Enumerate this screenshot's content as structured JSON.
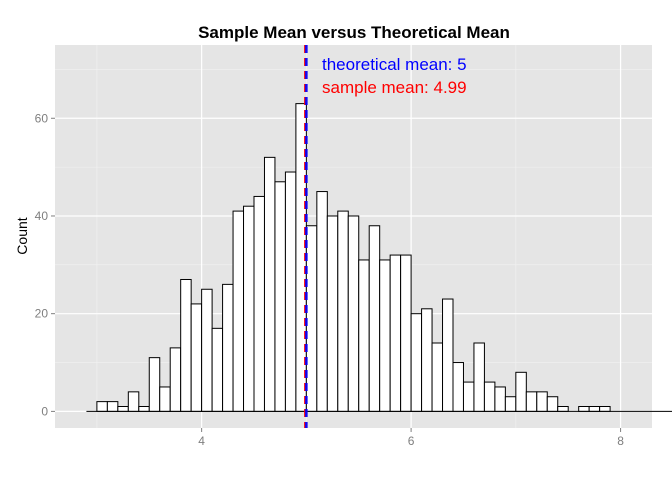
{
  "chart_data": {
    "type": "bar",
    "title": "Sample Mean versus Theoretical Mean",
    "xlabel": "",
    "ylabel": "Count",
    "xlim": [
      2.6,
      8.3
    ],
    "ylim": [
      -3.4,
      75
    ],
    "x_ticks": [
      4,
      6,
      8
    ],
    "y_ticks": [
      0,
      20,
      40,
      60
    ],
    "bin_width": 0.1,
    "bins_start": 2.9,
    "values": [
      0,
      2,
      2,
      1,
      4,
      1,
      11,
      5,
      13,
      27,
      22,
      25,
      17,
      26,
      41,
      42,
      44,
      52,
      47,
      49,
      63,
      38,
      45,
      40,
      41,
      40,
      31,
      38,
      31,
      32,
      32,
      20,
      21,
      14,
      23,
      10,
      6,
      14,
      6,
      5,
      3,
      8,
      4,
      4,
      3,
      1,
      0,
      1,
      1,
      1,
      0,
      0,
      0,
      0,
      0,
      0,
      0,
      1,
      0
    ],
    "reference_lines": [
      {
        "name": "theoretical mean",
        "x": 5,
        "color": "#0000ff",
        "style": "dashed"
      },
      {
        "name": "sample mean",
        "x": 4.99,
        "color": "#ff0000",
        "style": "dashed"
      }
    ],
    "annotations": [
      {
        "text": "theoretical mean: 5",
        "color": "#0000ff"
      },
      {
        "text": "sample mean: 4.99",
        "color": "#ff0000"
      }
    ],
    "grid": true,
    "panel_background": "#e5e5e5",
    "bar_fill": "#ffffff",
    "bar_outline": "#000000"
  }
}
